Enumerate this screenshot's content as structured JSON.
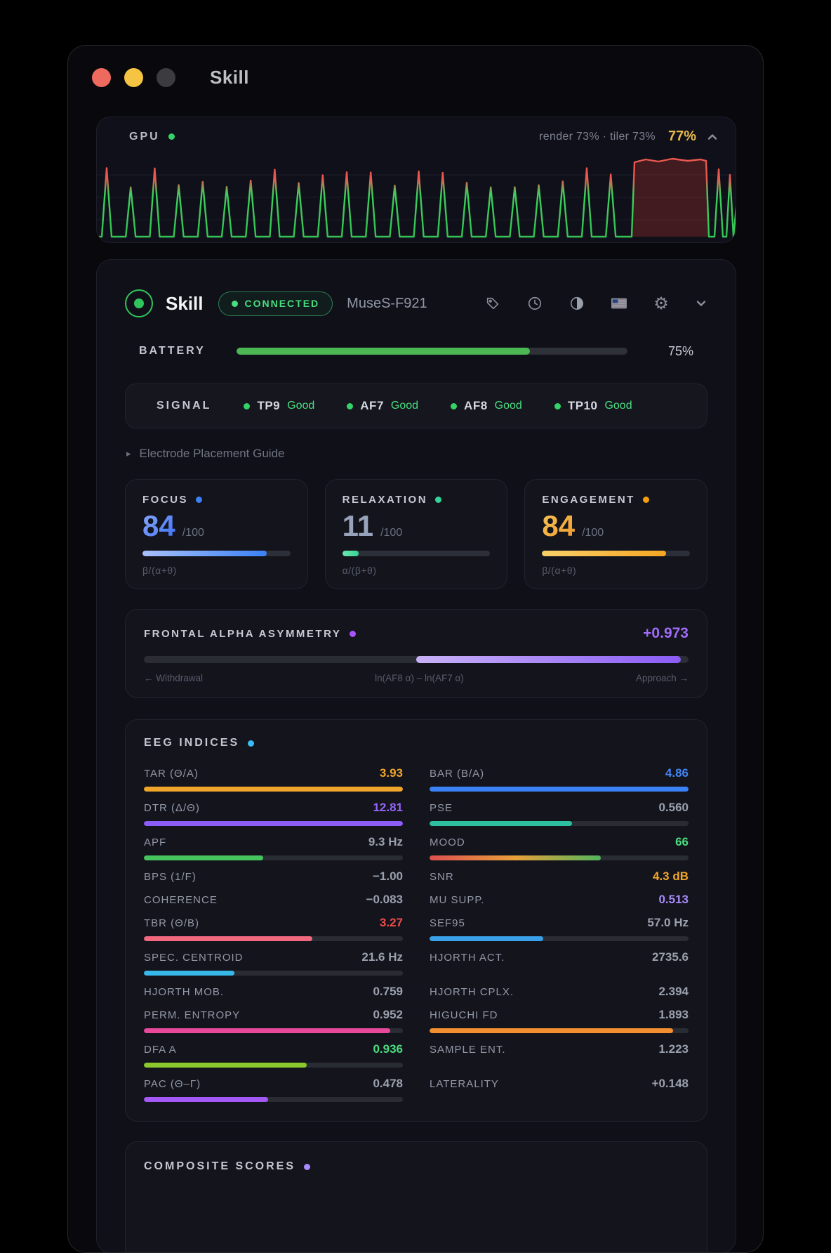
{
  "window": {
    "title": "Skill"
  },
  "gpu": {
    "label": "GPU",
    "dot_color": "#34d368",
    "stats": "render 73% · tiler 73%",
    "percent": "77%",
    "percent_color": "#e9bb4b",
    "waveform": {
      "type": "area-spikes",
      "line_green": "#3fcf5d",
      "line_red": "#e8584e",
      "plateau_fill": "rgba(222,64,54,0.24)",
      "spike_count": 22
    }
  },
  "header": {
    "app_name": "Skill",
    "badge": "CONNECTED",
    "badge_color": "#4ade80",
    "device": "MuseS-F921"
  },
  "battery": {
    "label": "BATTERY",
    "percent": 75,
    "display": "75%",
    "color": "#4bb853"
  },
  "signal": {
    "label": "SIGNAL",
    "channels": [
      {
        "name": "TP9",
        "quality": "Good",
        "dot": "#34d368"
      },
      {
        "name": "AF7",
        "quality": "Good",
        "dot": "#34d368"
      },
      {
        "name": "AF8",
        "quality": "Good",
        "dot": "#34d368"
      },
      {
        "name": "TP10",
        "quality": "Good",
        "dot": "#34d368"
      }
    ]
  },
  "guide": {
    "label": "Electrode Placement Guide",
    "arrow": "▸"
  },
  "metrics": [
    {
      "name": "FOCUS",
      "dot": "#3b82f6",
      "value": "84",
      "max": "/100",
      "formula": "β/(α+θ)",
      "percent": 84,
      "value_css": "linear-gradient(135deg,#8aabfa,#3b6ef5)",
      "bar_css": "linear-gradient(90deg,#a8c0f8,#3b82f6)"
    },
    {
      "name": "RELAXATION",
      "dot": "#34d399",
      "value": "11",
      "max": "/100",
      "formula": "α/(β+θ)",
      "percent": 11,
      "value_css": "linear-gradient(135deg,#97a2bb,#97a2bb)",
      "bar_css": "linear-gradient(90deg,#6ee7a8,#34d399)"
    },
    {
      "name": "ENGAGEMENT",
      "dot": "#f59e0b",
      "value": "84",
      "max": "/100",
      "formula": "β/(α+θ)",
      "percent": 84,
      "value_css": "linear-gradient(135deg,#f6c453,#ef9931)",
      "bar_css": "linear-gradient(90deg,#f8d16a,#f5a623)"
    }
  ],
  "faa": {
    "label": "FRONTAL ALPHA ASYMMETRY",
    "dot": "#a855f7",
    "value": "+0.973",
    "width_percent": 48.6,
    "bar_css": "linear-gradient(90deg,#c9b2f7,#8b5cf6)",
    "left_label": "← Withdrawal",
    "center_label": "ln(AF8 α) – ln(AF7 α)",
    "right_label": "Approach →"
  },
  "eeg": {
    "label": "EEG INDICES",
    "dot": "#38bdf8",
    "rows": [
      {
        "left": {
          "label": "TAR (Θ/A)",
          "value": "3.93",
          "color": "#f0a62a",
          "bar": {
            "pct": 100,
            "css": "#f0a62a"
          }
        },
        "right": {
          "label": "BAR (B/A)",
          "value": "4.86",
          "color": "#4285f4",
          "bar": {
            "pct": 100,
            "css": "#3b82f6"
          }
        }
      },
      {
        "left": {
          "label": "DTR (Δ/Θ)",
          "value": "12.81",
          "color": "#9465f7",
          "bar": {
            "pct": 100,
            "css": "#8b5cf6"
          }
        },
        "right": {
          "label": "PSE",
          "value": "0.560",
          "color": "#9aa1ae",
          "bar": {
            "pct": 55,
            "css": "#2dbfa0"
          }
        }
      },
      {
        "left": {
          "label": "APF",
          "value": "9.3 Hz",
          "color": "#9aa1ae",
          "bar": {
            "pct": 46,
            "css": "#46c55e"
          }
        },
        "right": {
          "label": "MOOD",
          "value": "66",
          "color": "#4ade80",
          "bar": {
            "pct": 66,
            "css": "linear-gradient(90deg,#dd5050,#e8a03a,#52b65c)"
          }
        }
      },
      {
        "left": {
          "label": "BPS (1/F)",
          "value": "−1.00",
          "color": "#9aa1ae",
          "bar": null
        },
        "right": {
          "label": "SNR",
          "value": "4.3 dB",
          "color": "#f0a62a",
          "bar": null
        }
      },
      {
        "left": {
          "label": "COHERENCE",
          "value": "−0.083",
          "color": "#9aa1ae",
          "bar": null
        },
        "right": {
          "label": "MU SUPP.",
          "value": "0.513",
          "color": "#a78bfa",
          "bar": null
        }
      },
      {
        "left": {
          "label": "TBR (Θ/B)",
          "value": "3.27",
          "color": "#ef4b4b",
          "bar": {
            "pct": 65,
            "css": "#f2687e"
          }
        },
        "right": {
          "label": "SEF95",
          "value": "57.0 Hz",
          "color": "#9aa1ae",
          "bar": {
            "pct": 44,
            "css": "#3aa0e8"
          }
        }
      },
      {
        "left": {
          "label": "SPEC. CENTROID",
          "value": "21.6 Hz",
          "color": "#9aa1ae",
          "bar": {
            "pct": 35,
            "css": "#38b8e8"
          }
        },
        "right": {
          "label": "HJORTH ACT.",
          "value": "2735.6",
          "color": "#9aa1ae",
          "bar": null
        }
      },
      {
        "left": {
          "label": "HJORTH MOB.",
          "value": "0.759",
          "color": "#9aa1ae",
          "bar": null
        },
        "right": {
          "label": "HJORTH CPLX.",
          "value": "2.394",
          "color": "#9aa1ae",
          "bar": null
        }
      },
      {
        "left": {
          "label": "PERM. ENTROPY",
          "value": "0.952",
          "color": "#9aa1ae",
          "bar": {
            "pct": 95,
            "css": "#e8499b"
          }
        },
        "right": {
          "label": "HIGUCHI FD",
          "value": "1.893",
          "color": "#9aa1ae",
          "bar": {
            "pct": 94,
            "css": "#f29030"
          }
        }
      },
      {
        "left": {
          "label": "DFA A",
          "value": "0.936",
          "color": "#4ade80",
          "bar": {
            "pct": 63,
            "css": "#8bc92c"
          }
        },
        "right": {
          "label": "SAMPLE ENT.",
          "value": "1.223",
          "color": "#9aa1ae",
          "bar": null
        }
      },
      {
        "left": {
          "label": "PAC (Θ–Γ)",
          "value": "0.478",
          "color": "#9aa1ae",
          "bar": {
            "pct": 48,
            "css": "#a458f5"
          }
        },
        "right": {
          "label": "LATERALITY",
          "value": "+0.148",
          "color": "#9aa1ae",
          "bar": null
        }
      }
    ]
  },
  "composite": {
    "label": "COMPOSITE SCORES",
    "dot": "#a78bfa"
  }
}
